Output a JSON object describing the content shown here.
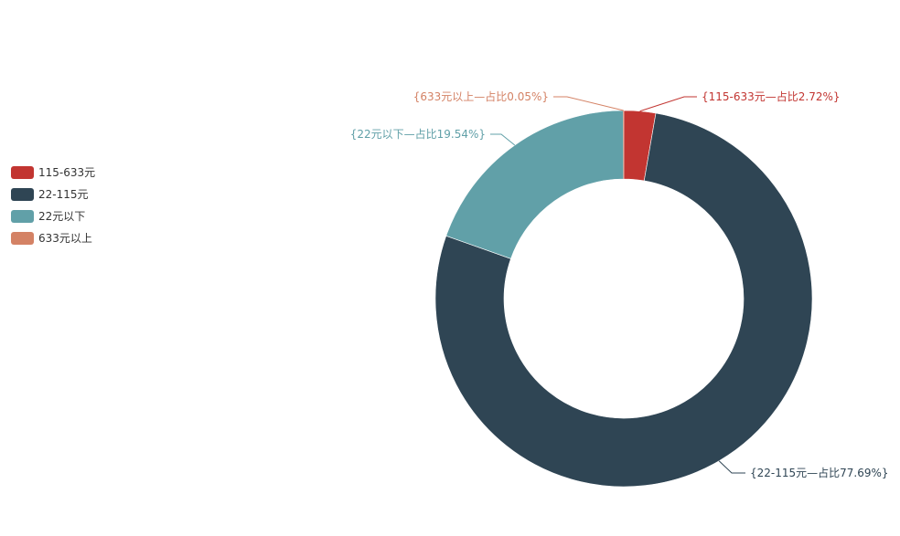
{
  "chart_data": {
    "type": "pie",
    "variant": "donut",
    "title": "",
    "legend": {
      "placement": "left",
      "items": [
        "115-633元",
        "22-115元",
        "22元以下",
        "633元以上"
      ]
    },
    "slices": [
      {
        "name": "115-633元",
        "percent": 2.72,
        "color": "#c23531",
        "label": "{115-633元—占比2.72%}"
      },
      {
        "name": "22-115元",
        "percent": 77.69,
        "color": "#2f4554",
        "label": "{22-115元—占比77.69%}"
      },
      {
        "name": "22元以下",
        "percent": 19.54,
        "color": "#61a0a8",
        "label": "{22元以下—占比19.54%}"
      },
      {
        "name": "633元以上",
        "percent": 0.05,
        "color": "#d48265",
        "label": "{633元以上—占比0.05%}"
      }
    ]
  }
}
